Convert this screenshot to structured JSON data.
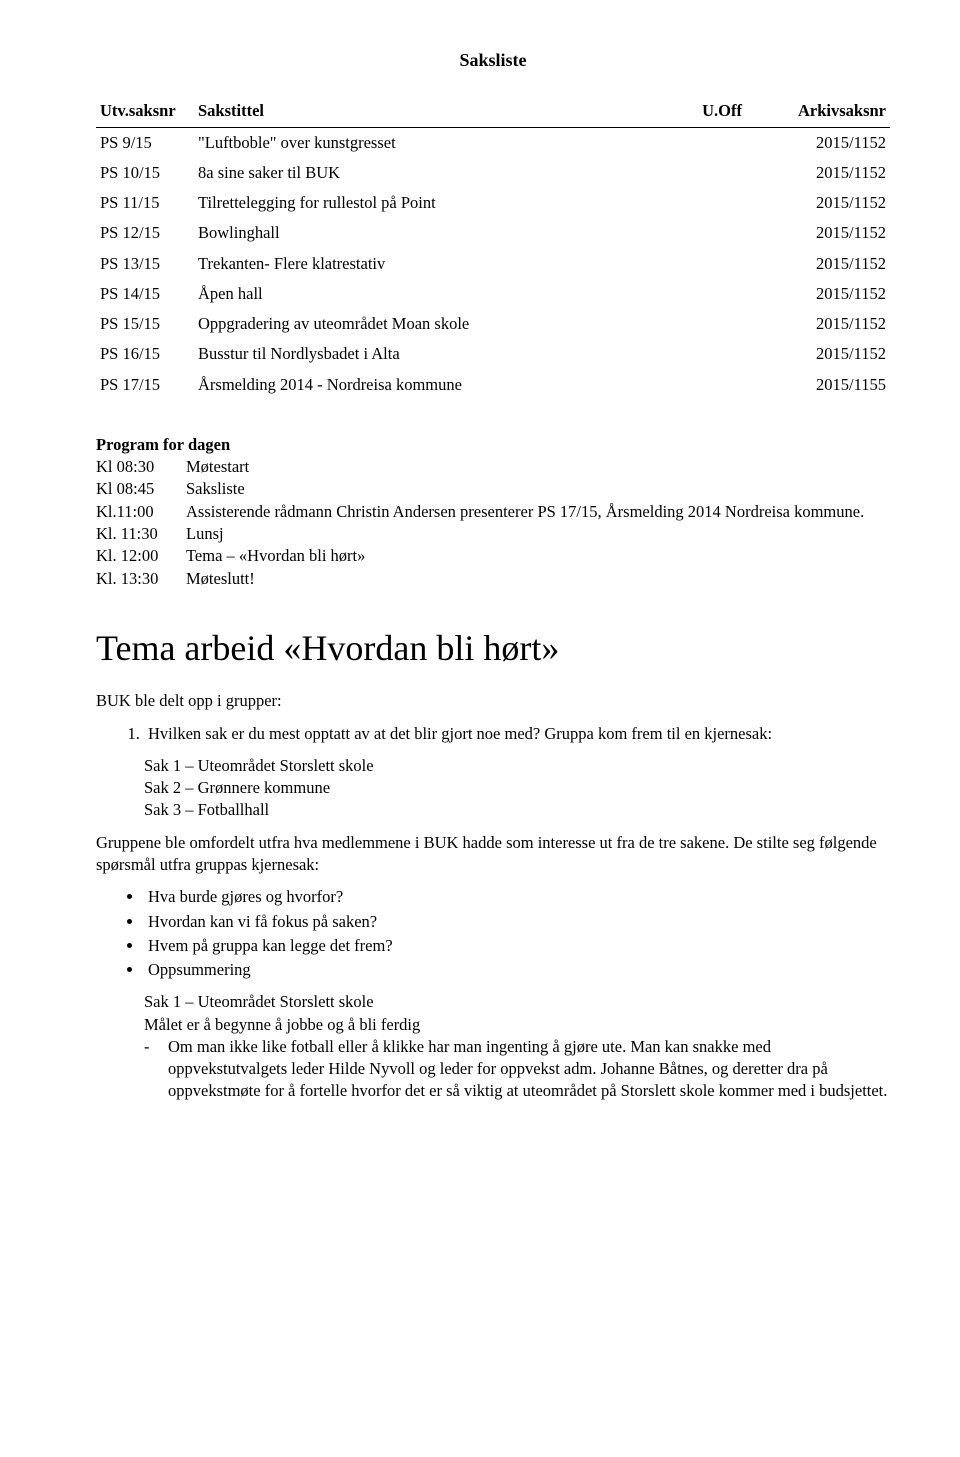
{
  "title": "Saksliste",
  "table": {
    "headers": {
      "id": "Utv.saksnr",
      "title": "Sakstittel",
      "uoff": "U.Off",
      "arkiv": "Arkivsaksnr"
    },
    "rows": [
      {
        "id": "PS 9/15",
        "title": "\"Luftboble\" over kunstgresset",
        "uoff": "",
        "arkiv": "2015/1152"
      },
      {
        "id": "PS 10/15",
        "title": "8a sine saker til BUK",
        "uoff": "",
        "arkiv": "2015/1152"
      },
      {
        "id": "PS 11/15",
        "title": "Tilrettelegging for rullestol på Point",
        "uoff": "",
        "arkiv": "2015/1152"
      },
      {
        "id": "PS 12/15",
        "title": "Bowlinghall",
        "uoff": "",
        "arkiv": "2015/1152"
      },
      {
        "id": "PS 13/15",
        "title": "Trekanten- Flere klatrestativ",
        "uoff": "",
        "arkiv": "2015/1152"
      },
      {
        "id": "PS 14/15",
        "title": "Åpen hall",
        "uoff": "",
        "arkiv": "2015/1152"
      },
      {
        "id": "PS 15/15",
        "title": "Oppgradering av uteområdet Moan skole",
        "uoff": "",
        "arkiv": "2015/1152"
      },
      {
        "id": "PS 16/15",
        "title": "Busstur til Nordlysbadet i Alta",
        "uoff": "",
        "arkiv": "2015/1152"
      },
      {
        "id": "PS 17/15",
        "title": "Årsmelding 2014 - Nordreisa kommune",
        "uoff": "",
        "arkiv": "2015/1155"
      }
    ]
  },
  "program_heading": "Program for dagen",
  "program": [
    {
      "time": "Kl 08:30",
      "text": "Møtestart"
    },
    {
      "time": "Kl 08:45",
      "text": "Saksliste"
    },
    {
      "time": "Kl.11:00",
      "text": "Assisterende rådmann Christin Andersen presenterer PS 17/15, Årsmelding 2014 Nordreisa kommune."
    },
    {
      "time": "Kl. 11:30",
      "text": "Lunsj"
    },
    {
      "time": "Kl. 12:00",
      "text": "Tema – «Hvordan bli hørt»"
    },
    {
      "time": "Kl. 13:30",
      "text": "Møteslutt!"
    }
  ],
  "big_heading": "Tema arbeid «Hvordan bli hørt»",
  "groups_intro": "BUK ble delt opp i grupper:",
  "group_q": "Hvilken sak er du mest opptatt av at det blir gjort noe med? Gruppa kom frem til en kjernesak:",
  "group_items": [
    "Sak 1 – Uteområdet Storslett skole",
    "Sak 2 – Grønnere kommune",
    "Sak 3 – Fotballhall"
  ],
  "reshuffle": "Gruppene ble omfordelt utfra hva medlemmene i BUK hadde som interesse ut fra de tre sakene. De stilte seg følgende spørsmål utfra gruppas kjernesak:",
  "questions": [
    "Hva burde gjøres og hvorfor?",
    "Hvordan kan vi få fokus på saken?",
    "Hvem på gruppa kan legge det frem?",
    "Oppsummering"
  ],
  "sak1_title": "Sak 1 – Uteområdet Storslett skole",
  "sak1_goal": "Målet er å begynne å jobbe og å bli ferdig",
  "sak1_dash": "Om man ikke like fotball eller å klikke har man ingenting å gjøre ute. Man kan snakke med oppvekstutvalgets leder Hilde Nyvoll og leder for oppvekst adm. Johanne Båtnes, og deretter dra på oppvekstmøte for å fortelle hvorfor det er så viktig at uteområdet på Storslett skole kommer med i budsjettet."
}
